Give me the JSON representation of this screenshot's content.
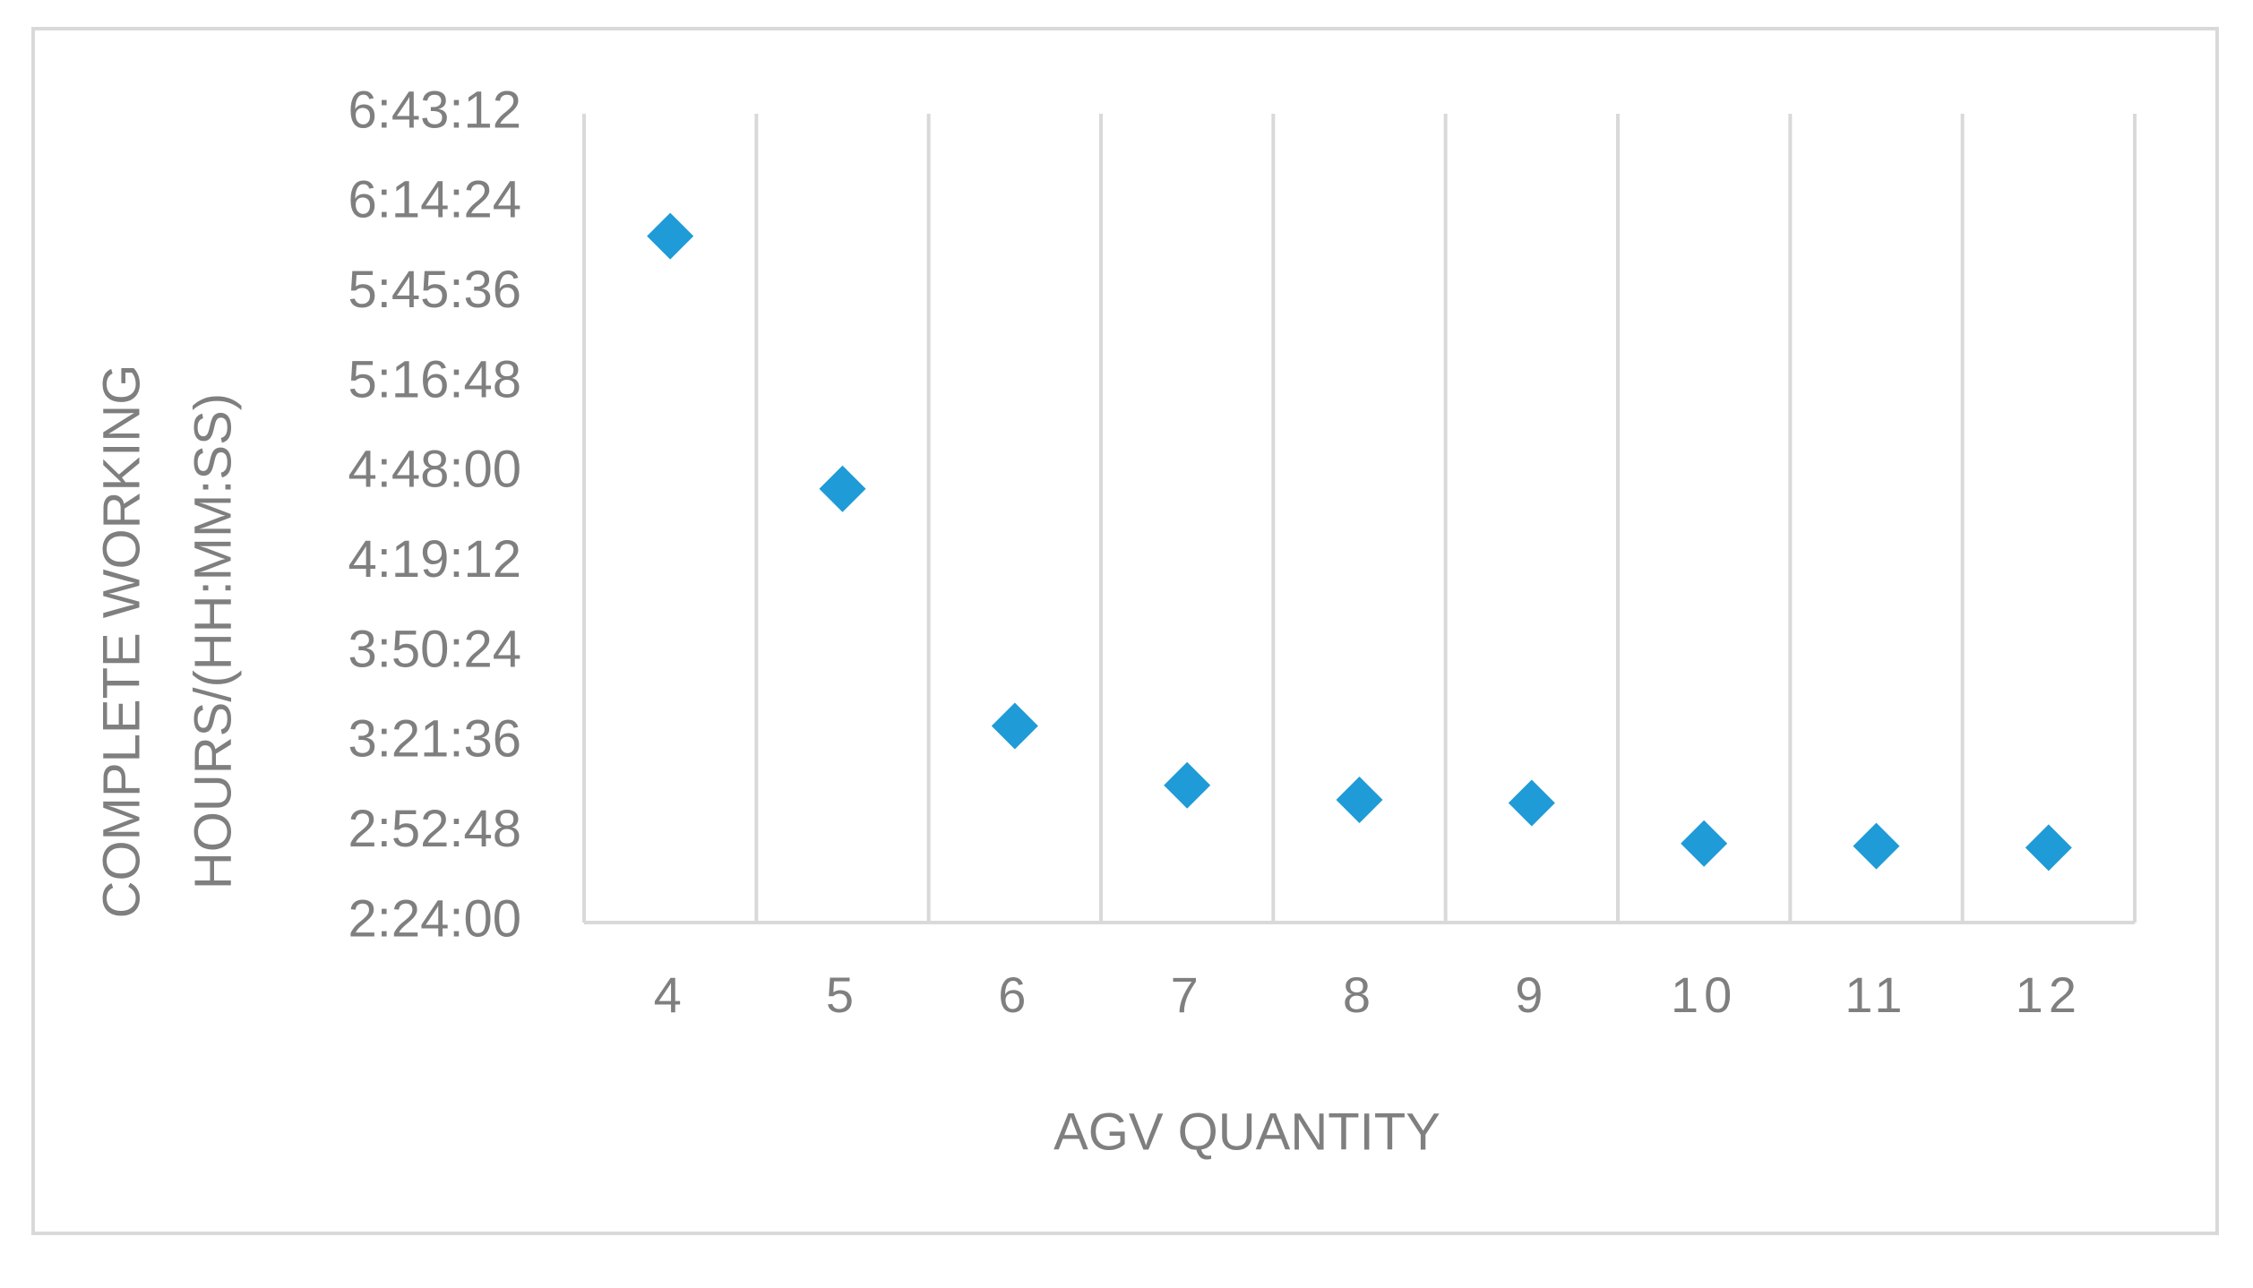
{
  "chart_data": {
    "type": "scatter",
    "x_label": "AGV QUANTITY",
    "y_label": [
      "COMPLETE WORKING",
      "HOURS/(HH:MM:SS)"
    ],
    "categories": [
      "4",
      "5",
      "6",
      "7",
      "8",
      "9",
      "10",
      "11",
      "12"
    ],
    "series": [
      {
        "color": "#1f9bd7",
        "values": [
          21840,
          16980,
          12420,
          11280,
          11000,
          10940,
          10160,
          10110,
          10080
        ]
      }
    ],
    "ylim": [
      8640,
      24192
    ],
    "yticks": [
      {
        "value": 8640,
        "label": "2:24:00"
      },
      {
        "value": 10368,
        "label": "2:52:48"
      },
      {
        "value": 12096,
        "label": "3:21:36"
      },
      {
        "value": 13824,
        "label": "3:50:24"
      },
      {
        "value": 15552,
        "label": "4:19:12"
      },
      {
        "value": 17280,
        "label": "4:48:00"
      },
      {
        "value": 19008,
        "label": "5:16:48"
      },
      {
        "value": 20736,
        "label": "5:45:36"
      },
      {
        "value": 22464,
        "label": "6:14:24"
      },
      {
        "value": 24192,
        "label": "6:43:12"
      }
    ],
    "marker": "diamond",
    "grid": "x"
  }
}
